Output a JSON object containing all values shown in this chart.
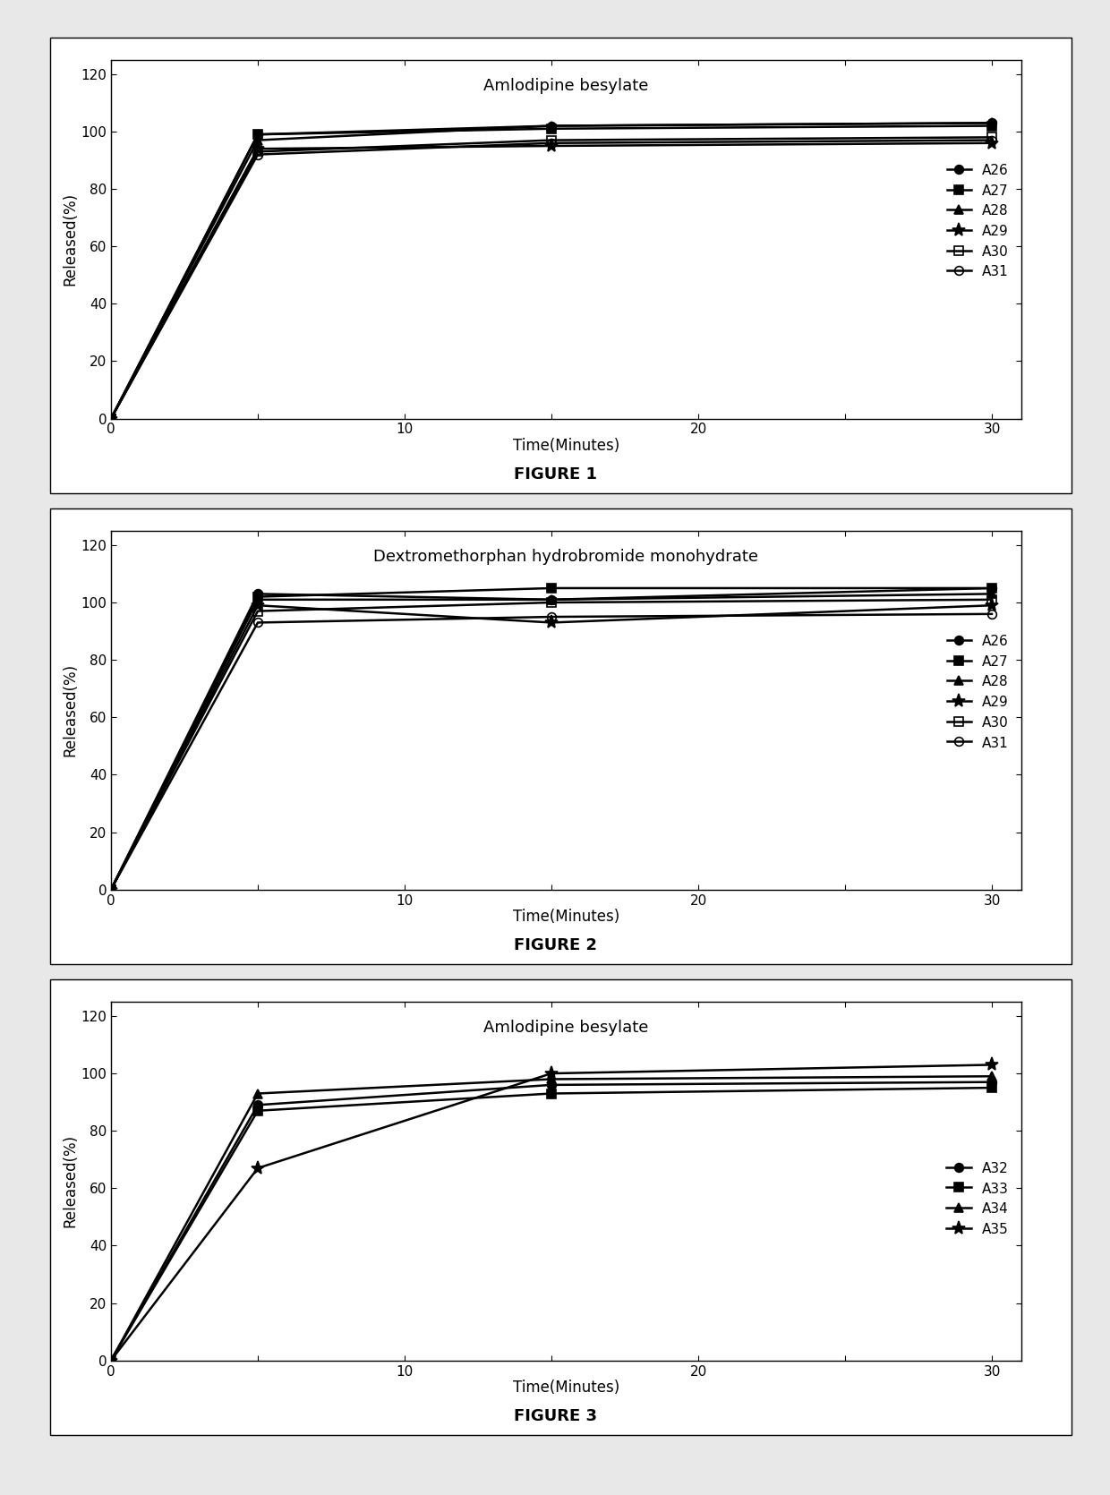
{
  "fig1": {
    "title": "Amlodipine besylate",
    "figure_label": "FIGURE 1",
    "series": [
      {
        "label": "A26",
        "marker": "o",
        "x": [
          0,
          5,
          15,
          30
        ],
        "y": [
          0,
          99,
          102,
          103
        ]
      },
      {
        "label": "A27",
        "marker": "s",
        "x": [
          0,
          5,
          15,
          30
        ],
        "y": [
          0,
          99,
          101,
          102
        ]
      },
      {
        "label": "A28",
        "marker": "^",
        "x": [
          0,
          5,
          15,
          30
        ],
        "y": [
          0,
          97,
          102,
          103
        ]
      },
      {
        "label": "A29",
        "marker": "*",
        "x": [
          0,
          5,
          15,
          30
        ],
        "y": [
          0,
          94,
          95,
          96
        ]
      },
      {
        "label": "A30",
        "marker": "s",
        "x": [
          0,
          5,
          15,
          30
        ],
        "y": [
          0,
          93,
          97,
          98
        ],
        "fillstyle": "none"
      },
      {
        "label": "A31",
        "marker": "o",
        "x": [
          0,
          5,
          15,
          30
        ],
        "y": [
          0,
          92,
          96,
          97
        ],
        "fillstyle": "none"
      }
    ]
  },
  "fig2": {
    "title": "Dextromethorphan hydrobromide monohydrate",
    "figure_label": "FIGURE 2",
    "series": [
      {
        "label": "A26",
        "marker": "o",
        "x": [
          0,
          5,
          15,
          30
        ],
        "y": [
          0,
          103,
          101,
          105
        ]
      },
      {
        "label": "A27",
        "marker": "s",
        "x": [
          0,
          5,
          15,
          30
        ],
        "y": [
          0,
          102,
          105,
          105
        ]
      },
      {
        "label": "A28",
        "marker": "^",
        "x": [
          0,
          5,
          15,
          30
        ],
        "y": [
          0,
          101,
          101,
          103
        ]
      },
      {
        "label": "A29",
        "marker": "*",
        "x": [
          0,
          5,
          15,
          30
        ],
        "y": [
          0,
          99,
          93,
          99
        ]
      },
      {
        "label": "A30",
        "marker": "s",
        "x": [
          0,
          5,
          15,
          30
        ],
        "y": [
          0,
          97,
          100,
          101
        ],
        "fillstyle": "none"
      },
      {
        "label": "A31",
        "marker": "o",
        "x": [
          0,
          5,
          15,
          30
        ],
        "y": [
          0,
          93,
          95,
          96
        ],
        "fillstyle": "none"
      }
    ]
  },
  "fig3": {
    "title": "Amlodipine besylate",
    "figure_label": "FIGURE 3",
    "series": [
      {
        "label": "A32",
        "marker": "o",
        "x": [
          0,
          5,
          15,
          30
        ],
        "y": [
          0,
          89,
          96,
          97
        ]
      },
      {
        "label": "A33",
        "marker": "s",
        "x": [
          0,
          5,
          15,
          30
        ],
        "y": [
          0,
          87,
          93,
          95
        ]
      },
      {
        "label": "A34",
        "marker": "^",
        "x": [
          0,
          5,
          15,
          30
        ],
        "y": [
          0,
          93,
          98,
          99
        ]
      },
      {
        "label": "A35",
        "marker": "*",
        "x": [
          0,
          5,
          15,
          30
        ],
        "y": [
          0,
          67,
          100,
          103
        ]
      }
    ]
  },
  "common": {
    "xlim": [
      0,
      31
    ],
    "ylim": [
      0,
      125
    ],
    "yticks": [
      0,
      20,
      40,
      60,
      80,
      100,
      120
    ],
    "xticks": [
      0,
      5,
      10,
      15,
      20,
      25,
      30
    ],
    "xticklabels": [
      "0",
      "",
      "10",
      "",
      "20",
      "",
      "30"
    ],
    "xlabel": "Time(Minutes)",
    "ylabel": "Released(%)",
    "line_color": "black",
    "line_width": 1.8,
    "marker_size": 7,
    "marker_size_star": 11,
    "background_color": "#ffffff",
    "title_fontsize": 13,
    "axis_fontsize": 12,
    "tick_fontsize": 11,
    "legend_fontsize": 11,
    "figure_label_fontsize": 13
  }
}
